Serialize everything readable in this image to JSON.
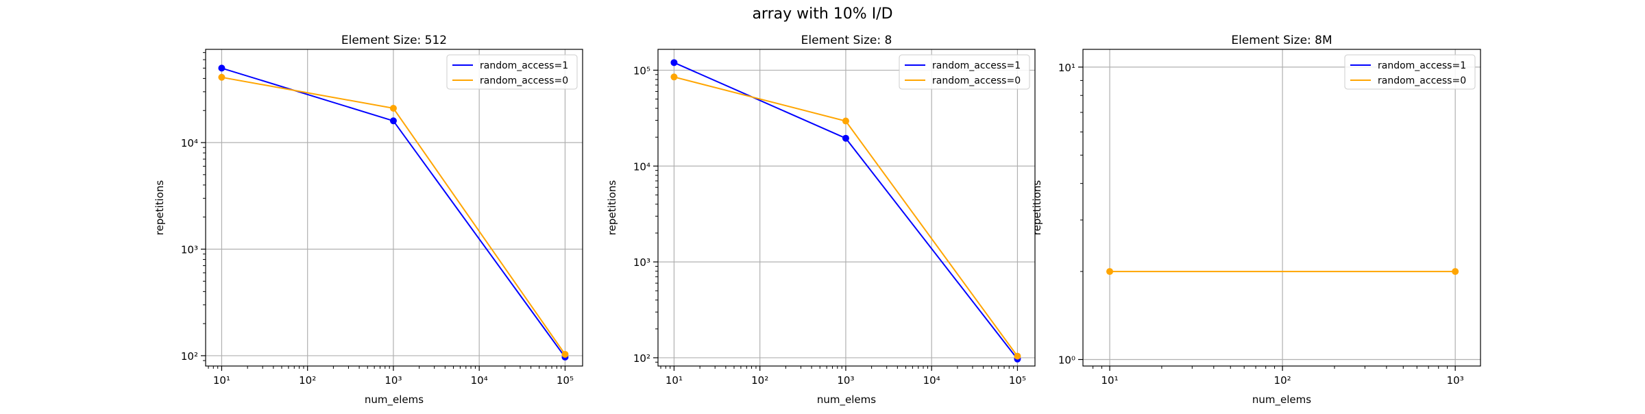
{
  "figure": {
    "suptitle": "array with 10% I/D"
  },
  "chart_data": [
    {
      "type": "line",
      "title": "Element Size: 512",
      "xlabel": "num_elems",
      "ylabel": "repetitions",
      "xscale": "log",
      "yscale": "log",
      "xlim": [
        6.5,
        160000
      ],
      "ylim": [
        80,
        75000
      ],
      "x_ticks": [
        10,
        100,
        1000,
        10000,
        100000
      ],
      "y_ticks": [
        100,
        1000,
        10000
      ],
      "grid": true,
      "legend": "top-right",
      "series": [
        {
          "name": "random_access=1",
          "color": "#0000ff",
          "x": [
            10,
            1000,
            100000
          ],
          "y": [
            50000,
            16000,
            97
          ]
        },
        {
          "name": "random_access=0",
          "color": "#ffa500",
          "x": [
            10,
            1000,
            100000
          ],
          "y": [
            41000,
            21000,
            103
          ]
        }
      ]
    },
    {
      "type": "line",
      "title": "Element Size: 8",
      "xlabel": "num_elems",
      "ylabel": "repetitions",
      "xscale": "log",
      "yscale": "log",
      "xlim": [
        6.5,
        160000
      ],
      "ylim": [
        82,
        165000
      ],
      "x_ticks": [
        10,
        100,
        1000,
        10000,
        100000
      ],
      "y_ticks": [
        100,
        1000,
        10000,
        100000
      ],
      "grid": true,
      "legend": "top-right",
      "series": [
        {
          "name": "random_access=1",
          "color": "#0000ff",
          "x": [
            10,
            1000,
            100000
          ],
          "y": [
            120000,
            19500,
            97
          ]
        },
        {
          "name": "random_access=0",
          "color": "#ffa500",
          "x": [
            10,
            1000,
            100000
          ],
          "y": [
            85000,
            29500,
            104
          ]
        }
      ]
    },
    {
      "type": "line",
      "title": "Element Size: 8M",
      "xlabel": "num_elems",
      "ylabel": "repetitions",
      "xscale": "log",
      "yscale": "log",
      "xlim": [
        7,
        1400
      ],
      "ylim": [
        0.95,
        11.5
      ],
      "x_ticks": [
        10,
        100,
        1000
      ],
      "y_ticks": [
        1,
        10
      ],
      "grid": true,
      "legend": "top-right",
      "series": [
        {
          "name": "random_access=1",
          "color": "#0000ff",
          "x": [],
          "y": []
        },
        {
          "name": "random_access=0",
          "color": "#ffa500",
          "x": [
            10,
            1000
          ],
          "y": [
            2,
            2
          ]
        }
      ]
    }
  ]
}
